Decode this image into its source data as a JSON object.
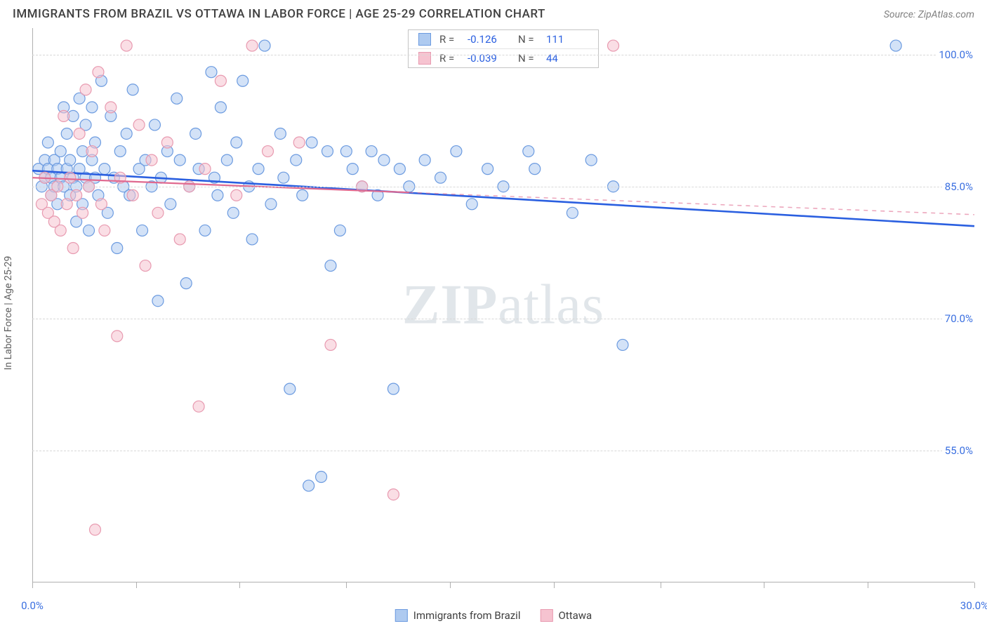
{
  "header": {
    "title": "IMMIGRANTS FROM BRAZIL VS OTTAWA IN LABOR FORCE | AGE 25-29 CORRELATION CHART",
    "source_prefix": "Source: ",
    "source_name": "ZipAtlas.com"
  },
  "watermark": {
    "part1": "ZIP",
    "part2": "atlas"
  },
  "chart": {
    "type": "scatter",
    "xlim": [
      0,
      30
    ],
    "ylim": [
      40,
      103
    ],
    "x_ticks": [
      0,
      3.3,
      6.6,
      10,
      13.3,
      16.6,
      20,
      23.3,
      26.6,
      30
    ],
    "x_tick_labels": {
      "0": "0.0%",
      "30": "30.0%"
    },
    "y_ticks": [
      55,
      70,
      85,
      100
    ],
    "y_tick_labels": {
      "55": "55.0%",
      "70": "70.0%",
      "85": "85.0%",
      "100": "100.0%"
    },
    "y_axis_label": "In Labor Force | Age 25-29",
    "grid_color": "#d8d8d8",
    "background_color": "#ffffff",
    "marker_radius": 8,
    "marker_stroke_width": 1.2,
    "series": [
      {
        "name": "Immigrants from Brazil",
        "fill": "#aecaf0",
        "stroke": "#6c9be0",
        "fill_opacity": 0.55,
        "R": "-0.126",
        "N": "111",
        "trend": {
          "y_start": 86.8,
          "y_end": 80.5,
          "solid_until_x": 30,
          "color": "#2a5fe0",
          "width": 2.6
        },
        "points": [
          [
            0.2,
            87
          ],
          [
            0.3,
            85
          ],
          [
            0.4,
            88
          ],
          [
            0.4,
            86
          ],
          [
            0.5,
            87
          ],
          [
            0.5,
            90
          ],
          [
            0.6,
            84
          ],
          [
            0.6,
            86
          ],
          [
            0.7,
            85
          ],
          [
            0.7,
            88
          ],
          [
            0.8,
            83
          ],
          [
            0.8,
            87
          ],
          [
            0.9,
            86
          ],
          [
            0.9,
            89
          ],
          [
            1.0,
            94
          ],
          [
            1.0,
            85
          ],
          [
            1.1,
            87
          ],
          [
            1.1,
            91
          ],
          [
            1.2,
            84
          ],
          [
            1.2,
            88
          ],
          [
            1.3,
            86
          ],
          [
            1.3,
            93
          ],
          [
            1.4,
            85
          ],
          [
            1.4,
            81
          ],
          [
            1.5,
            87
          ],
          [
            1.5,
            95
          ],
          [
            1.6,
            83
          ],
          [
            1.6,
            89
          ],
          [
            1.7,
            86
          ],
          [
            1.7,
            92
          ],
          [
            1.8,
            85
          ],
          [
            1.8,
            80
          ],
          [
            1.9,
            88
          ],
          [
            1.9,
            94
          ],
          [
            2.0,
            86
          ],
          [
            2.0,
            90
          ],
          [
            2.1,
            84
          ],
          [
            2.2,
            97
          ],
          [
            2.3,
            87
          ],
          [
            2.4,
            82
          ],
          [
            2.5,
            93
          ],
          [
            2.6,
            86
          ],
          [
            2.7,
            78
          ],
          [
            2.8,
            89
          ],
          [
            2.9,
            85
          ],
          [
            3.0,
            91
          ],
          [
            3.1,
            84
          ],
          [
            3.2,
            96
          ],
          [
            3.4,
            87
          ],
          [
            3.5,
            80
          ],
          [
            3.6,
            88
          ],
          [
            3.8,
            85
          ],
          [
            3.9,
            92
          ],
          [
            4.0,
            72
          ],
          [
            4.1,
            86
          ],
          [
            4.3,
            89
          ],
          [
            4.4,
            83
          ],
          [
            4.6,
            95
          ],
          [
            4.7,
            88
          ],
          [
            4.9,
            74
          ],
          [
            5.0,
            85
          ],
          [
            5.2,
            91
          ],
          [
            5.3,
            87
          ],
          [
            5.5,
            80
          ],
          [
            5.7,
            98
          ],
          [
            5.8,
            86
          ],
          [
            5.9,
            84
          ],
          [
            6.0,
            94
          ],
          [
            6.2,
            88
          ],
          [
            6.4,
            82
          ],
          [
            6.5,
            90
          ],
          [
            6.7,
            97
          ],
          [
            6.9,
            85
          ],
          [
            7.0,
            79
          ],
          [
            7.2,
            87
          ],
          [
            7.4,
            101
          ],
          [
            7.6,
            83
          ],
          [
            7.9,
            91
          ],
          [
            8.0,
            86
          ],
          [
            8.2,
            62
          ],
          [
            8.4,
            88
          ],
          [
            8.6,
            84
          ],
          [
            8.8,
            51
          ],
          [
            8.9,
            90
          ],
          [
            9.2,
            52
          ],
          [
            9.4,
            89
          ],
          [
            9.5,
            76
          ],
          [
            9.8,
            80
          ],
          [
            10.0,
            89
          ],
          [
            10.2,
            87
          ],
          [
            10.5,
            85
          ],
          [
            10.8,
            89
          ],
          [
            11.0,
            84
          ],
          [
            11.2,
            88
          ],
          [
            11.5,
            62
          ],
          [
            11.7,
            87
          ],
          [
            12.0,
            85
          ],
          [
            12.5,
            88
          ],
          [
            13.0,
            86
          ],
          [
            13.5,
            89
          ],
          [
            14.0,
            83
          ],
          [
            14.5,
            87
          ],
          [
            15.0,
            85
          ],
          [
            15.8,
            89
          ],
          [
            16.0,
            87
          ],
          [
            17.2,
            82
          ],
          [
            17.8,
            88
          ],
          [
            18.5,
            85
          ],
          [
            18.8,
            67
          ],
          [
            27.5,
            101
          ]
        ]
      },
      {
        "name": "Ottawa",
        "fill": "#f6c3d0",
        "stroke": "#e89ab0",
        "fill_opacity": 0.55,
        "R": "-0.039",
        "N": "44",
        "trend": {
          "y_start": 86.0,
          "y_end": 81.8,
          "solid_until_x": 12,
          "color": "#e06a90",
          "width": 2.2
        },
        "points": [
          [
            0.3,
            83
          ],
          [
            0.4,
            86
          ],
          [
            0.5,
            82
          ],
          [
            0.6,
            84
          ],
          [
            0.7,
            81
          ],
          [
            0.8,
            85
          ],
          [
            0.9,
            80
          ],
          [
            1.0,
            93
          ],
          [
            1.1,
            83
          ],
          [
            1.2,
            86
          ],
          [
            1.3,
            78
          ],
          [
            1.4,
            84
          ],
          [
            1.5,
            91
          ],
          [
            1.6,
            82
          ],
          [
            1.7,
            96
          ],
          [
            1.8,
            85
          ],
          [
            1.9,
            89
          ],
          [
            2.0,
            46
          ],
          [
            2.1,
            98
          ],
          [
            2.2,
            83
          ],
          [
            2.3,
            80
          ],
          [
            2.5,
            94
          ],
          [
            2.7,
            68
          ],
          [
            2.8,
            86
          ],
          [
            3.0,
            101
          ],
          [
            3.2,
            84
          ],
          [
            3.4,
            92
          ],
          [
            3.6,
            76
          ],
          [
            3.8,
            88
          ],
          [
            4.0,
            82
          ],
          [
            4.3,
            90
          ],
          [
            4.7,
            79
          ],
          [
            5.0,
            85
          ],
          [
            5.3,
            60
          ],
          [
            5.5,
            87
          ],
          [
            6.0,
            97
          ],
          [
            6.5,
            84
          ],
          [
            7.0,
            101
          ],
          [
            7.5,
            89
          ],
          [
            8.5,
            90
          ],
          [
            9.5,
            67
          ],
          [
            10.5,
            85
          ],
          [
            11.5,
            50
          ],
          [
            18.5,
            101
          ]
        ]
      }
    ]
  },
  "legend": {
    "items": [
      {
        "label": "Immigrants from Brazil",
        "fill": "#aecaf0",
        "stroke": "#6c9be0"
      },
      {
        "label": "Ottawa",
        "fill": "#f6c3d0",
        "stroke": "#e89ab0"
      }
    ]
  }
}
